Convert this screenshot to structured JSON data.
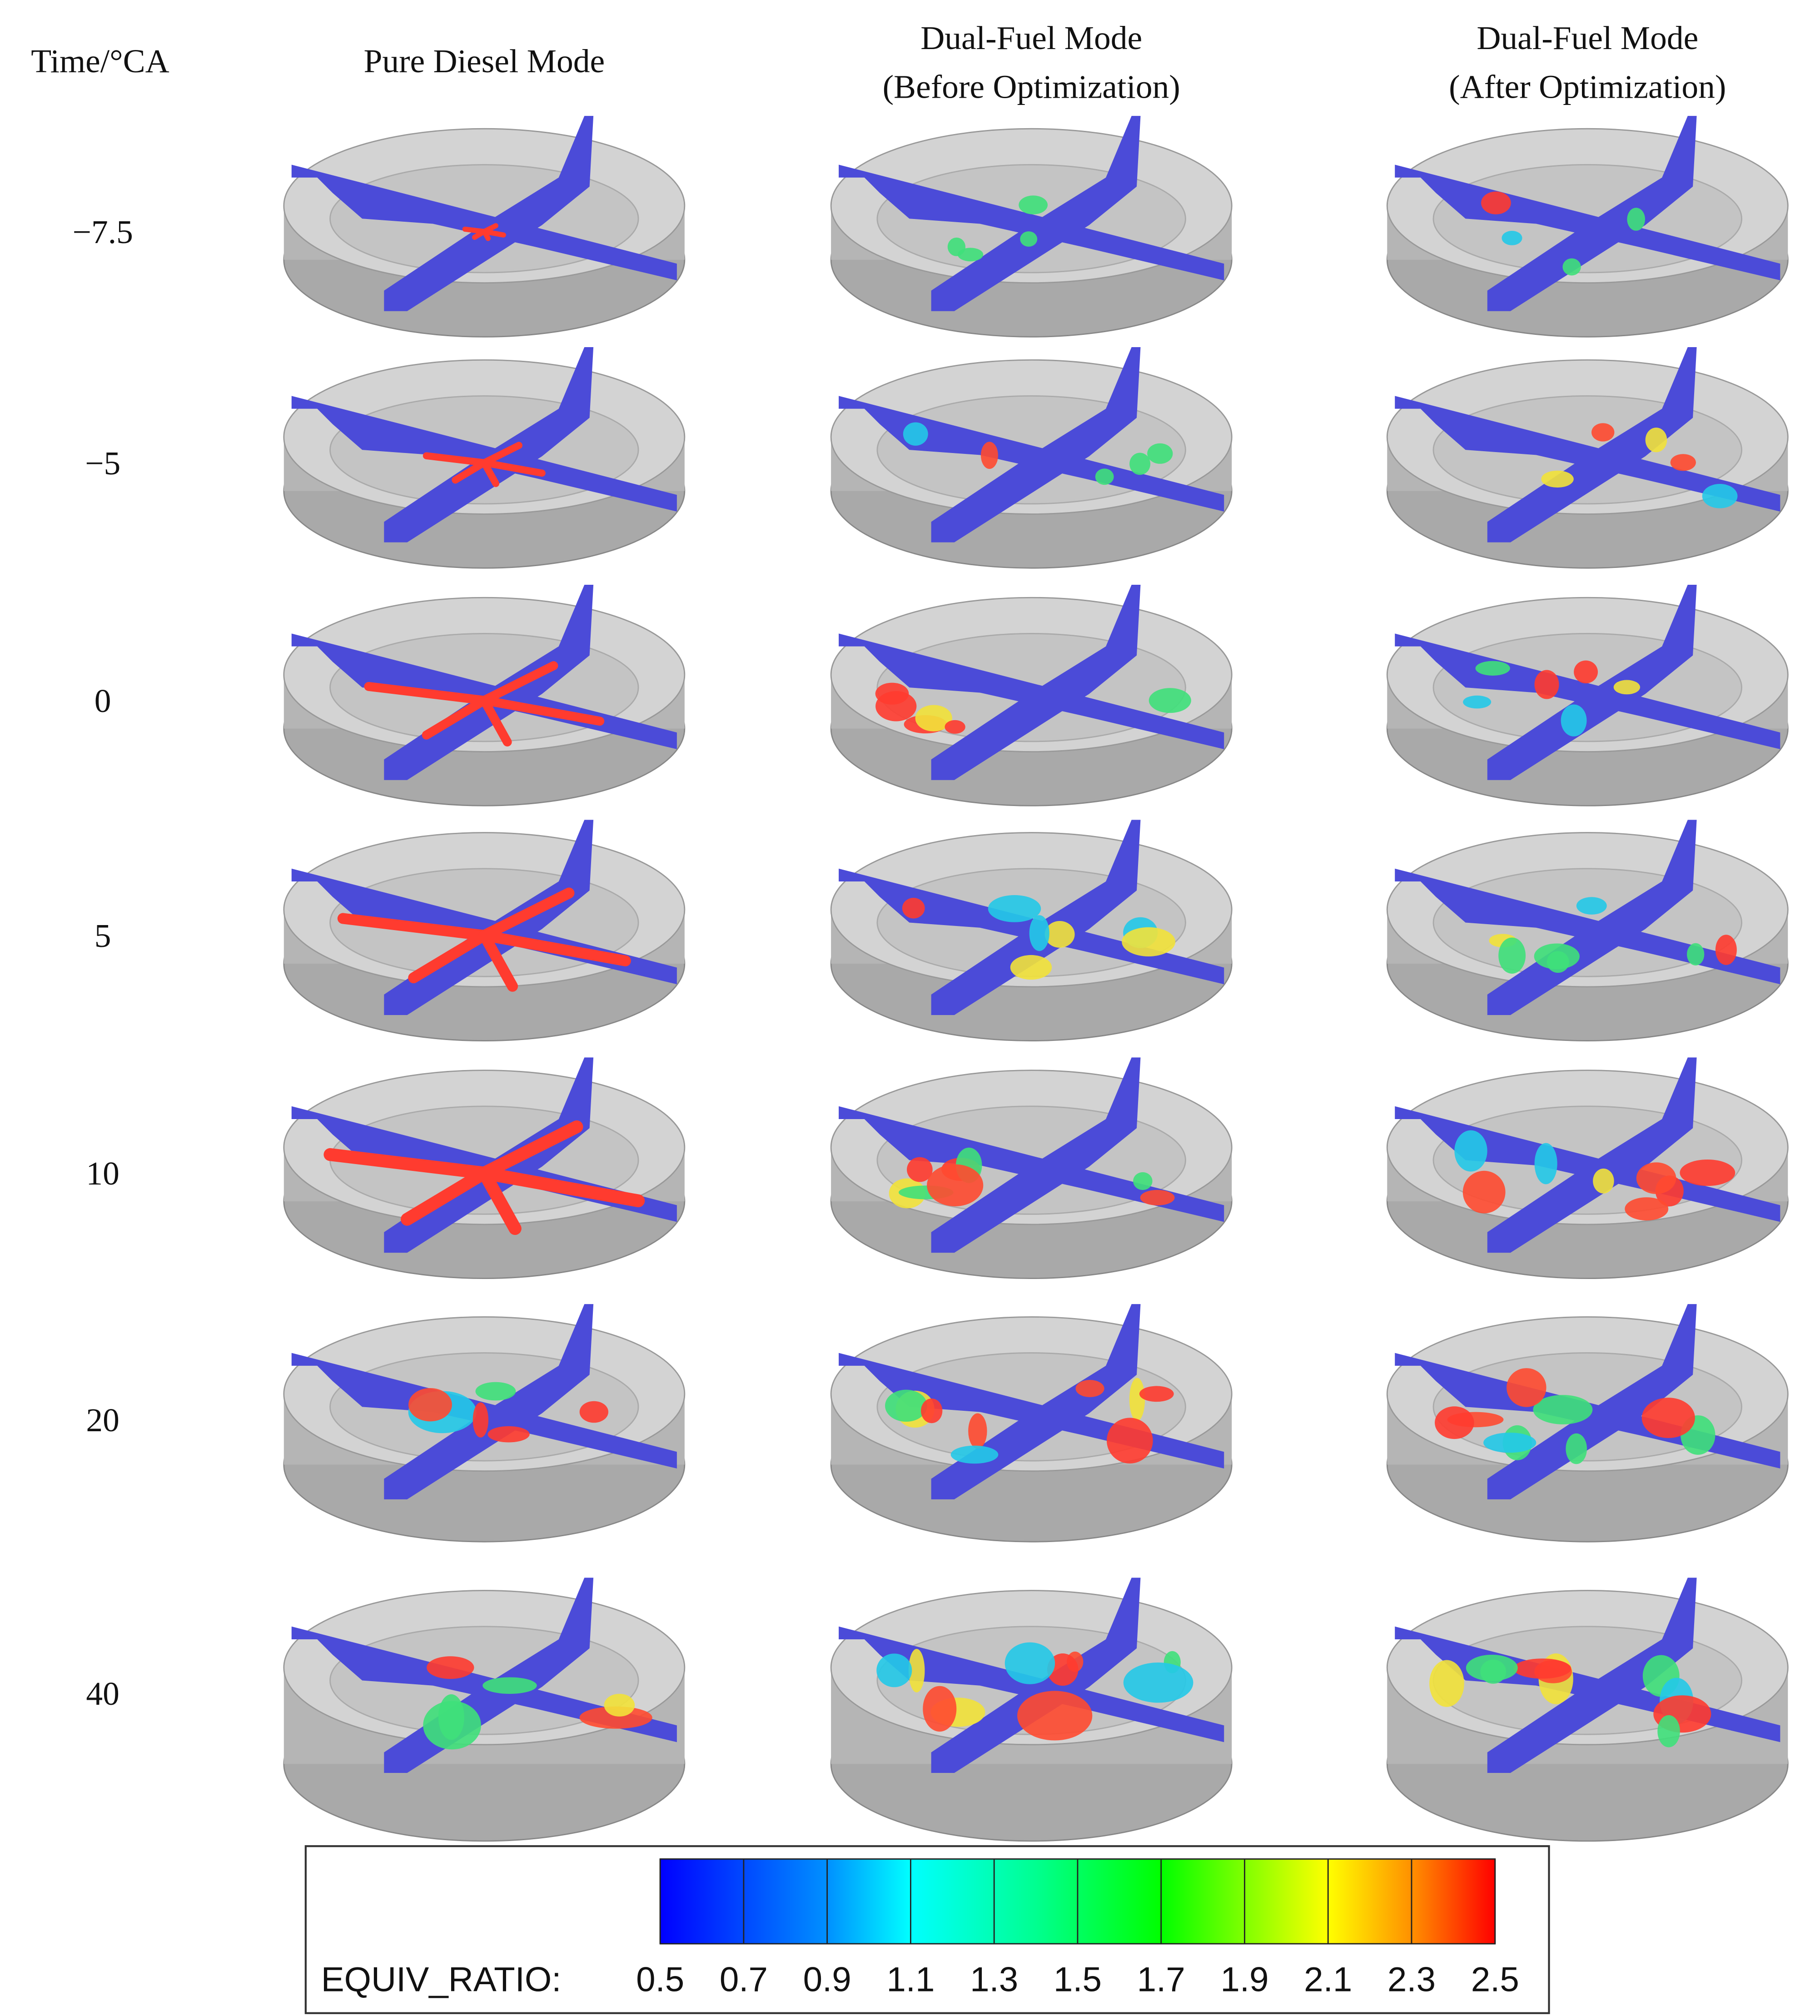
{
  "header": {
    "time_label": "Time/°CA",
    "columns": [
      [
        "Pure Diesel Mode"
      ],
      [
        "Dual-Fuel Mode",
        "(Before Optimization)"
      ],
      [
        "Dual-Fuel Mode",
        "(After Optimization)"
      ]
    ]
  },
  "rows": [
    "−7.5",
    "−5",
    "0",
    "5",
    "10",
    "20",
    "40"
  ],
  "colorbar": {
    "label": "EQUIV_RATIO:",
    "ticks": [
      0.5,
      0.7,
      0.9,
      1.1,
      1.3,
      1.5,
      1.7,
      1.9,
      2.1,
      2.3,
      2.5
    ]
  }
}
